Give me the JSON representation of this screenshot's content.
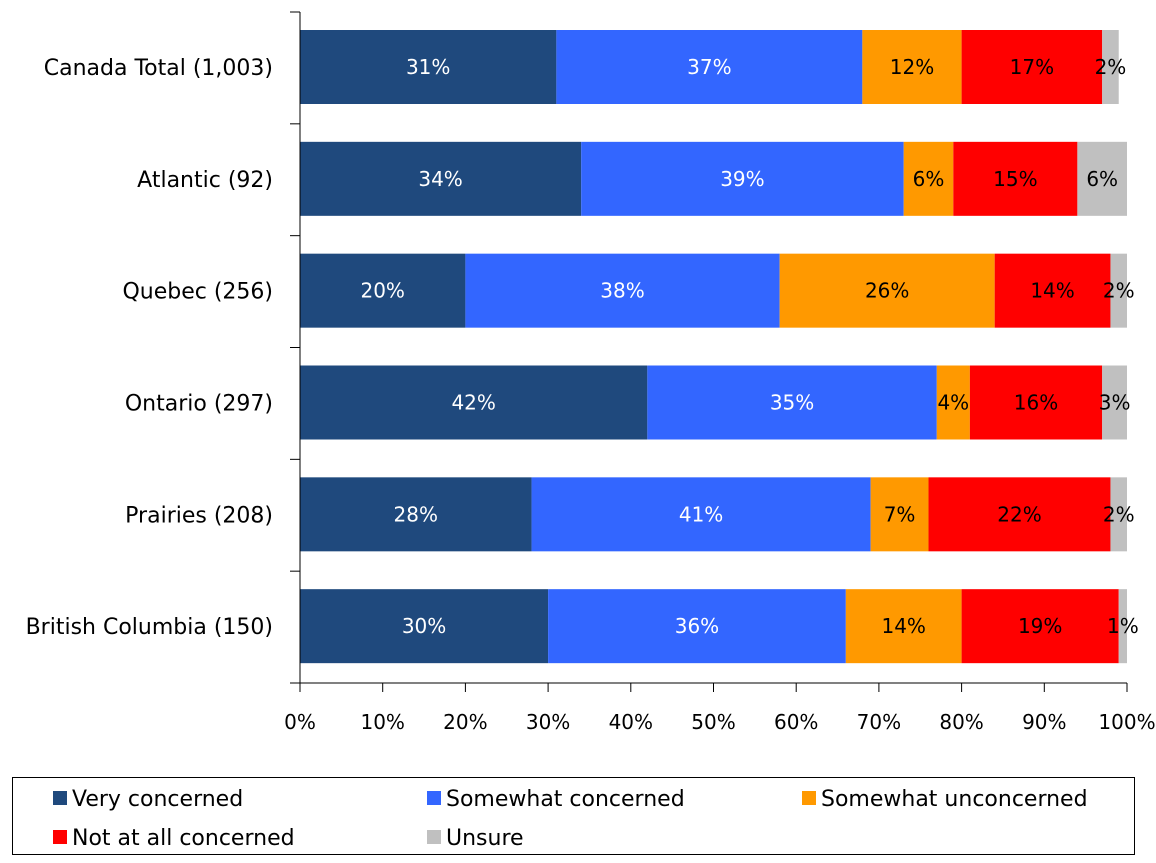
{
  "chart_data": {
    "type": "bar",
    "orientation": "horizontal",
    "stacked": true,
    "categories": [
      "Canada Total (1,003)",
      "Atlantic (92)",
      "Quebec (256)",
      "Ontario (297)",
      "Prairies (208)",
      "British Columbia (150)"
    ],
    "series": [
      {
        "name": "Very concerned",
        "color": "#1F497D",
        "label_color": "#ffffff",
        "values": [
          31,
          34,
          20,
          42,
          28,
          30
        ],
        "labels": [
          "31%",
          "34%",
          "20%",
          "42%",
          "28%",
          "30%"
        ]
      },
      {
        "name": "Somewhat concerned",
        "color": "#3366FF",
        "label_color": "#ffffff",
        "values": [
          37,
          39,
          38,
          35,
          41,
          36
        ],
        "labels": [
          "37%",
          "39%",
          "38%",
          "35%",
          "41%",
          "36%"
        ]
      },
      {
        "name": "Somewhat unconcerned",
        "color": "#FF9900",
        "label_color": "#000000",
        "values": [
          12,
          6,
          26,
          4,
          7,
          14
        ],
        "labels": [
          "12%",
          "6%",
          "26%",
          "4%",
          "7%",
          "14%"
        ]
      },
      {
        "name": "Not at all concerned",
        "color": "#FF0000",
        "label_color": "#000000",
        "values": [
          17,
          15,
          14,
          16,
          22,
          19
        ],
        "labels": [
          "17%",
          "15%",
          "14%",
          "16%",
          "22%",
          "19%"
        ]
      },
      {
        "name": "Unsure",
        "color": "#C0C0C0",
        "label_color": "#000000",
        "values": [
          2,
          6,
          2,
          3,
          2,
          1
        ],
        "labels": [
          "2%",
          "6%",
          "2%",
          "3%",
          "2%",
          "1%"
        ]
      }
    ],
    "xlim": [
      0,
      100
    ],
    "xticks": [
      "0%",
      "10%",
      "20%",
      "30%",
      "40%",
      "50%",
      "60%",
      "70%",
      "80%",
      "90%",
      "100%"
    ],
    "grid": false,
    "legend_position": "bottom"
  }
}
